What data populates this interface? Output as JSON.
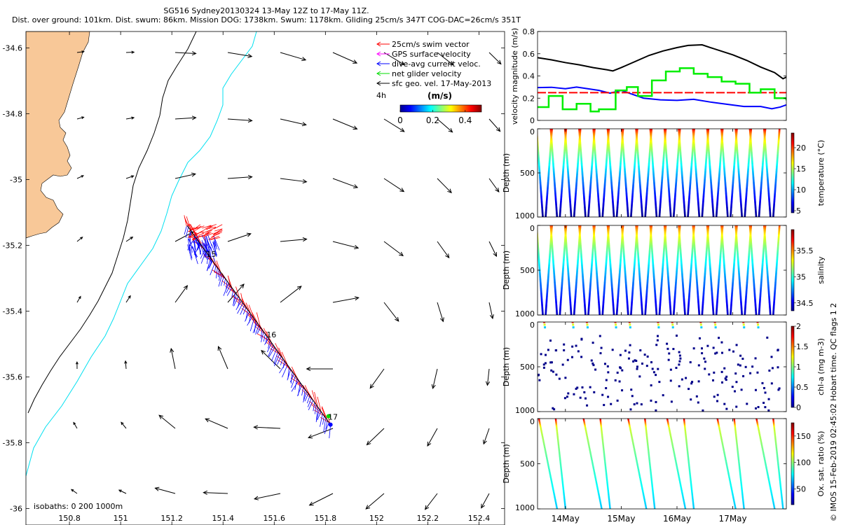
{
  "title": {
    "line1": "SG516 Sydney20130324 13-May 12Z to 17-May 11Z.",
    "line2": "Dist. over ground: 101km. Dist. swum: 86km. Mission DOG: 1738km. Swum: 1178km. Gliding 25cm/s 347T COG-DAC=26cm/s 351T"
  },
  "credit": "© IMOS 15-Feb-2019 02:45:02 Hobart time. QC flags 1  2",
  "colors": {
    "land": "#f8c898",
    "coast200": "#00e0f0",
    "swim": "#ff0000",
    "dac": "#0000ff",
    "gps": "#ff00ff",
    "net": "#00dd00",
    "sfc": "#000000"
  },
  "map": {
    "lon_range": [
      150.63,
      152.5
    ],
    "lat_range": [
      -36.05,
      -34.55
    ],
    "lon_ticks": [
      150.8,
      151,
      151.2,
      151.4,
      151.6,
      151.8,
      152,
      152.2,
      152.4
    ],
    "lon_tick_labels": [
      "150.8",
      "151",
      "151.2",
      "151.4",
      "151.6",
      "151.8",
      "152",
      "152.2",
      "152.4"
    ],
    "lat_ticks": [
      -34.6,
      -34.8,
      -35,
      -35.2,
      -35.4,
      -35.6,
      -35.8,
      -36
    ],
    "lat_tick_labels": [
      "-34.6",
      "-34.8",
      "-35",
      "-35.2",
      "-35.4",
      "-35.6",
      "-35.8",
      "-36"
    ],
    "isobath_label": "isobaths: 0   200  1000m",
    "day_labels": [
      {
        "text": "15",
        "lon": 151.335,
        "lat": -35.235
      },
      {
        "text": "16",
        "lon": 151.57,
        "lat": -35.48
      },
      {
        "text": "17",
        "lon": 151.81,
        "lat": -35.73
      }
    ],
    "track_start": [
      151.82,
      -35.745
    ],
    "track_end": [
      151.26,
      -35.14
    ],
    "legend": {
      "items": [
        {
          "label": "25cm/s swim vector",
          "key": "swim"
        },
        {
          "label": "GPS surface velocity",
          "key": "gps"
        },
        {
          "label": "dive-avg current veloc.",
          "key": "dac"
        },
        {
          "label": "net glider velocity",
          "key": "net"
        },
        {
          "label": "sfc geo. vel. 17-May-2013",
          "key": "sfc"
        }
      ],
      "duration": "4h",
      "colorbar_title": "(m/s)",
      "colorbar_range": [
        0,
        0.5
      ],
      "colorbar_ticks": [
        "0",
        "0.2",
        "0.4"
      ]
    }
  },
  "chart_data": [
    {
      "type": "line",
      "title": "",
      "ylabel": "velocity magnitude (m/s)",
      "x_range": [
        13.5,
        17.96
      ],
      "ylim": [
        0,
        0.8
      ],
      "yticks": [
        "0",
        "0.2",
        "0.4",
        "0.6",
        "0.8"
      ],
      "series": [
        {
          "name": "sfc geo. vel. magnitude",
          "color": "#000000",
          "x": [
            13.5,
            13.75,
            14.0,
            14.25,
            14.5,
            14.75,
            14.85,
            15.0,
            15.25,
            15.5,
            15.75,
            16.0,
            16.2,
            16.45,
            16.6,
            17.0,
            17.25,
            17.5,
            17.75,
            17.9,
            17.96
          ],
          "y": [
            0.565,
            0.545,
            0.52,
            0.5,
            0.475,
            0.455,
            0.445,
            0.475,
            0.53,
            0.585,
            0.625,
            0.655,
            0.675,
            0.68,
            0.655,
            0.59,
            0.54,
            0.48,
            0.43,
            0.375,
            0.39
          ]
        },
        {
          "name": "dive-avg current magnitude",
          "color": "#0000ff",
          "x": [
            13.5,
            13.75,
            14.0,
            14.2,
            14.4,
            14.6,
            14.8,
            15.0,
            15.2,
            15.4,
            15.7,
            16.0,
            16.3,
            16.6,
            16.9,
            17.2,
            17.5,
            17.7,
            17.85,
            17.96
          ],
          "y": [
            0.295,
            0.298,
            0.285,
            0.3,
            0.285,
            0.27,
            0.245,
            0.27,
            0.235,
            0.2,
            0.185,
            0.18,
            0.19,
            0.165,
            0.145,
            0.125,
            0.125,
            0.105,
            0.12,
            0.14
          ]
        },
        {
          "name": "swim speed (25 cm/s)",
          "color": "#ff0000",
          "dashed": true,
          "x": [
            13.5,
            17.96
          ],
          "y": [
            0.25,
            0.25
          ]
        },
        {
          "name": "net glider velocity",
          "color": "#00ee00",
          "step": true,
          "x": [
            13.5,
            13.7,
            13.95,
            14.2,
            14.45,
            14.6,
            14.9,
            15.1,
            15.3,
            15.55,
            15.8,
            16.05,
            16.3,
            16.55,
            16.8,
            17.05,
            17.3,
            17.5,
            17.75,
            17.96
          ],
          "y": [
            0.12,
            0.22,
            0.1,
            0.15,
            0.08,
            0.1,
            0.27,
            0.3,
            0.22,
            0.36,
            0.44,
            0.47,
            0.42,
            0.39,
            0.35,
            0.33,
            0.25,
            0.28,
            0.2,
            0.18
          ]
        }
      ]
    },
    {
      "type": "scatter",
      "ylabel": "Depth (m)",
      "colorbar_label": "temperature (°C)",
      "depth_ticks": [
        "0",
        "500",
        "1000"
      ],
      "clim": [
        4.5,
        23.5
      ],
      "colorbar_ticks": [
        {
          "v": 5,
          "label": "5"
        },
        {
          "v": 10,
          "label": "10"
        },
        {
          "v": 15,
          "label": "15"
        },
        {
          "v": 20,
          "label": "20"
        }
      ],
      "n_profiles": 17,
      "surface_value": 22.5,
      "bottom_value": 4.8
    },
    {
      "type": "scatter",
      "ylabel": "Depth (m)",
      "colorbar_label": "salinity",
      "depth_ticks": [
        "0",
        "500",
        "1000"
      ],
      "clim": [
        34.35,
        35.9
      ],
      "colorbar_ticks": [
        {
          "v": 34.5,
          "label": "34.5"
        },
        {
          "v": 35,
          "label": "35"
        },
        {
          "v": 35.5,
          "label": "35.5"
        }
      ],
      "n_profiles": 17,
      "surface_value": 35.7,
      "bottom_value": 34.45
    },
    {
      "type": "scatter",
      "ylabel": "Depth (m)",
      "colorbar_label": "chl-a (mg m-3)",
      "depth_ticks": [
        "0",
        "500",
        "1000"
      ],
      "clim": [
        0,
        2
      ],
      "colorbar_ticks": [
        {
          "v": 0,
          "label": "0"
        },
        {
          "v": 0.5,
          "label": "0.5"
        },
        {
          "v": 1,
          "label": "1"
        },
        {
          "v": 1.5,
          "label": "1.5"
        },
        {
          "v": 2,
          "label": "2"
        }
      ],
      "n_profiles": 17,
      "sparse": true,
      "surface_value": 1.5,
      "bottom_value": 0.02
    },
    {
      "type": "scatter",
      "ylabel": "Depth (m)",
      "colorbar_label": "Ox. sat. ratio (%)",
      "depth_ticks": [
        "0",
        "500",
        "1000"
      ],
      "clim": [
        20,
        175
      ],
      "colorbar_ticks": [
        {
          "v": 50,
          "label": "50"
        },
        {
          "v": 100,
          "label": "100"
        },
        {
          "v": 150,
          "label": "150"
        }
      ],
      "profile_times": [
        13.6,
        13.75,
        14.4,
        14.55,
        15.2,
        15.35,
        15.9,
        16.05,
        16.8,
        16.95,
        17.5,
        17.65
      ],
      "surface_value": 125,
      "bottom_value": 70
    }
  ],
  "time_axis": {
    "x_range": [
      13.5,
      17.96
    ],
    "ticks": [
      14,
      15,
      16,
      17
    ],
    "labels": [
      "14May",
      "15May",
      "16May",
      "17May"
    ]
  }
}
